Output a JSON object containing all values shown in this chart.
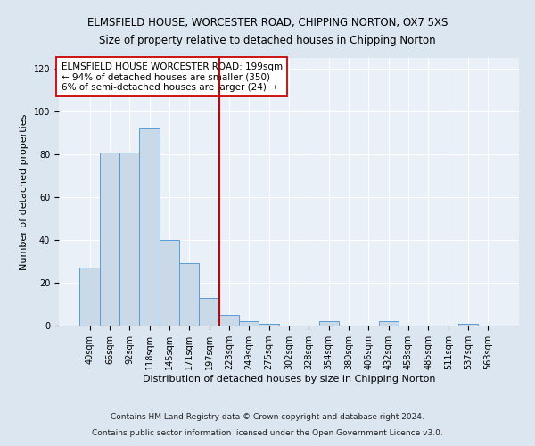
{
  "title": "ELMSFIELD HOUSE, WORCESTER ROAD, CHIPPING NORTON, OX7 5XS",
  "subtitle": "Size of property relative to detached houses in Chipping Norton",
  "xlabel": "Distribution of detached houses by size in Chipping Norton",
  "ylabel": "Number of detached properties",
  "bar_labels": [
    "40sqm",
    "66sqm",
    "92sqm",
    "118sqm",
    "145sqm",
    "171sqm",
    "197sqm",
    "223sqm",
    "249sqm",
    "275sqm",
    "302sqm",
    "328sqm",
    "354sqm",
    "380sqm",
    "406sqm",
    "432sqm",
    "458sqm",
    "485sqm",
    "511sqm",
    "537sqm",
    "563sqm"
  ],
  "bar_values": [
    27,
    81,
    81,
    92,
    40,
    29,
    13,
    5,
    2,
    1,
    0,
    0,
    2,
    0,
    0,
    2,
    0,
    0,
    0,
    1,
    0
  ],
  "bar_color": "#c9d9e8",
  "bar_edge_color": "#5b9bd5",
  "vline_x": 6.5,
  "vline_color": "#cc0000",
  "annotation_text": "ELMSFIELD HOUSE WORCESTER ROAD: 199sqm\n← 94% of detached houses are smaller (350)\n6% of semi-detached houses are larger (24) →",
  "annotation_box_color": "#ffffff",
  "annotation_box_edge": "#cc0000",
  "ylim": [
    0,
    125
  ],
  "yticks": [
    0,
    20,
    40,
    60,
    80,
    100,
    120
  ],
  "footer_line1": "Contains HM Land Registry data © Crown copyright and database right 2024.",
  "footer_line2": "Contains public sector information licensed under the Open Government Licence v3.0.",
  "bg_color": "#dce6f0",
  "plot_bg_color": "#eaf0f8",
  "grid_color": "#ffffff",
  "title_fontsize": 8.5,
  "subtitle_fontsize": 8.5,
  "axis_label_fontsize": 8,
  "tick_fontsize": 7,
  "annotation_fontsize": 7.5,
  "footer_fontsize": 6.5
}
